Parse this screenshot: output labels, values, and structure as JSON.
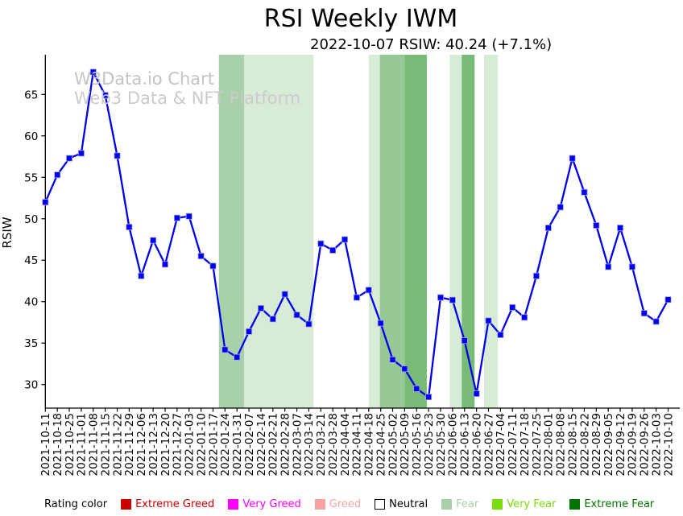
{
  "title": "RSI Weekly IWM",
  "subtitle": "2022-10-07 RSIW: 40.24 (+7.1%)",
  "watermark": {
    "line1": "W3Data.io Chart",
    "line2": "Web3 Data & NFT Platform"
  },
  "chart_data": {
    "type": "line",
    "title": "RSI Weekly IWM",
    "ylabel": "RSIW",
    "xlabel": "",
    "yticks": [
      30,
      35,
      40,
      45,
      50,
      55,
      60,
      65
    ],
    "ylim": [
      27.2,
      69.8
    ],
    "grid": false,
    "line_color": "#0000ee",
    "marker": "square",
    "categories": [
      "2021-10-11",
      "2021-10-18",
      "2021-10-25",
      "2021-11-01",
      "2021-11-08",
      "2021-11-15",
      "2021-11-22",
      "2021-11-29",
      "2021-12-06",
      "2021-12-13",
      "2021-12-20",
      "2021-12-27",
      "2022-01-03",
      "2022-01-10",
      "2022-01-17",
      "2022-01-24",
      "2022-01-31",
      "2022-02-07",
      "2022-02-14",
      "2022-02-21",
      "2022-02-28",
      "2022-03-07",
      "2022-03-14",
      "2022-03-21",
      "2022-03-28",
      "2022-04-04",
      "2022-04-11",
      "2022-04-18",
      "2022-04-25",
      "2022-05-02",
      "2022-05-09",
      "2022-05-16",
      "2022-05-23",
      "2022-05-30",
      "2022-06-06",
      "2022-06-13",
      "2022-06-20",
      "2022-06-27",
      "2022-07-04",
      "2022-07-11",
      "2022-07-18",
      "2022-07-25",
      "2022-08-01",
      "2022-08-08",
      "2022-08-15",
      "2022-08-22",
      "2022-08-29",
      "2022-09-05",
      "2022-09-12",
      "2022-09-19",
      "2022-09-26",
      "2022-10-03",
      "2022-10-10"
    ],
    "values": [
      52.0,
      55.3,
      57.3,
      57.9,
      67.7,
      64.9,
      57.6,
      49.0,
      43.1,
      47.4,
      44.5,
      50.1,
      50.3,
      45.5,
      44.3,
      34.2,
      33.3,
      36.4,
      39.2,
      37.9,
      40.9,
      38.4,
      37.3,
      47.0,
      46.2,
      47.5,
      40.5,
      41.4,
      37.4,
      33.0,
      31.9,
      29.5,
      28.5,
      40.5,
      40.2,
      35.3,
      28.9,
      37.7,
      36.0,
      39.3,
      38.1,
      43.1,
      48.9,
      51.4,
      57.3,
      53.2,
      49.2,
      44.2,
      48.9,
      44.2,
      38.6,
      37.6,
      40.24
    ],
    "bands": [
      {
        "start": 14.49,
        "end": 16.61,
        "color": "#a9d1a9"
      },
      {
        "start": 16.61,
        "end": 22.4,
        "color": "#d7ebd7"
      },
      {
        "start": 27.01,
        "end": 27.93,
        "color": "#d7ebd7"
      },
      {
        "start": 27.93,
        "end": 29.99,
        "color": "#96c996"
      },
      {
        "start": 29.99,
        "end": 31.85,
        "color": "#77bb77"
      },
      {
        "start": 33.76,
        "end": 34.77,
        "color": "#d7ebd7"
      },
      {
        "start": 34.77,
        "end": 35.84,
        "color": "#77bb77"
      },
      {
        "start": 36.63,
        "end": 37.79,
        "color": "#d7ebd7"
      }
    ]
  },
  "legend": {
    "label": "Rating color",
    "items": [
      {
        "label": "Extreme Greed",
        "color": "#cc0000"
      },
      {
        "label": "Very Greed",
        "color": "#ff00ff"
      },
      {
        "label": "Greed",
        "color": "#f7a3a3"
      },
      {
        "label": "Neutral",
        "color": "#ffffff",
        "text_color": "#000000",
        "swatch_border": "#000000"
      },
      {
        "label": "Fear",
        "color": "#a9cfa9"
      },
      {
        "label": "Very Fear",
        "color": "#79dd0e"
      },
      {
        "label": "Extreme Fear",
        "color": "#007400"
      }
    ]
  }
}
